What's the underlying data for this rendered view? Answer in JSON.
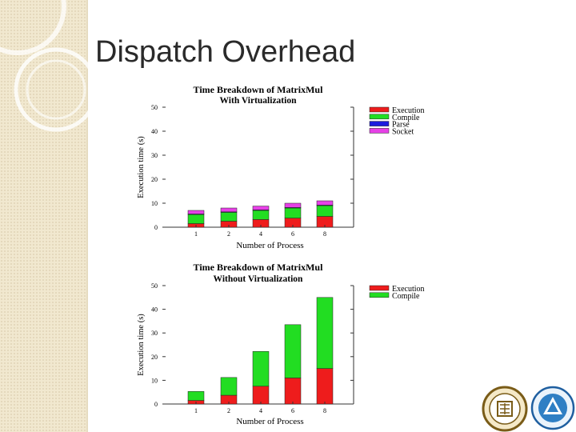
{
  "slide": {
    "title": "Dispatch Overhead"
  },
  "colors": {
    "execution": "#ee1c1c",
    "compile": "#22dd22",
    "parse": "#1c1cdd",
    "socket": "#e640e6",
    "sidebar": "#f1e8cf"
  },
  "chart_data": [
    {
      "type": "bar",
      "stacked": true,
      "title": "Time Breakdown of MatrixMul",
      "subtitle": "With Virtualization",
      "xlabel": "Number of Process",
      "ylabel": "Execution time (s)",
      "ylim": [
        0,
        50
      ],
      "yticks": [
        "0",
        "10",
        "20",
        "30",
        "40",
        "50"
      ],
      "categories": [
        "1",
        "2",
        "4",
        "6",
        "8"
      ],
      "series": [
        {
          "name": "Execution",
          "color": "#ee1c1c",
          "values": [
            1.5,
            2.5,
            3.2,
            3.8,
            4.5
          ]
        },
        {
          "name": "Compile",
          "color": "#22dd22",
          "values": [
            3.8,
            3.7,
            3.8,
            4.2,
            4.5
          ]
        },
        {
          "name": "Parse",
          "color": "#1c1cdd",
          "values": [
            0.2,
            0.2,
            0.2,
            0.2,
            0.2
          ]
        },
        {
          "name": "Socket",
          "color": "#e640e6",
          "values": [
            1.5,
            1.6,
            1.6,
            1.8,
            1.8
          ]
        }
      ],
      "legend_position": "right"
    },
    {
      "type": "bar",
      "stacked": true,
      "title": "Time Breakdown of MatrixMul",
      "subtitle": "Without Virtualization",
      "xlabel": "Number of Process",
      "ylabel": "Execution time (s)",
      "ylim": [
        0,
        50
      ],
      "yticks": [
        "0",
        "10",
        "20",
        "30",
        "40",
        "50"
      ],
      "categories": [
        "1",
        "2",
        "4",
        "6",
        "8"
      ],
      "series": [
        {
          "name": "Execution",
          "color": "#ee1c1c",
          "values": [
            1.5,
            3.7,
            7.5,
            11.0,
            15.0
          ]
        },
        {
          "name": "Compile",
          "color": "#22dd22",
          "values": [
            3.8,
            7.5,
            14.7,
            22.5,
            30.0
          ]
        }
      ],
      "legend_position": "right"
    }
  ]
}
